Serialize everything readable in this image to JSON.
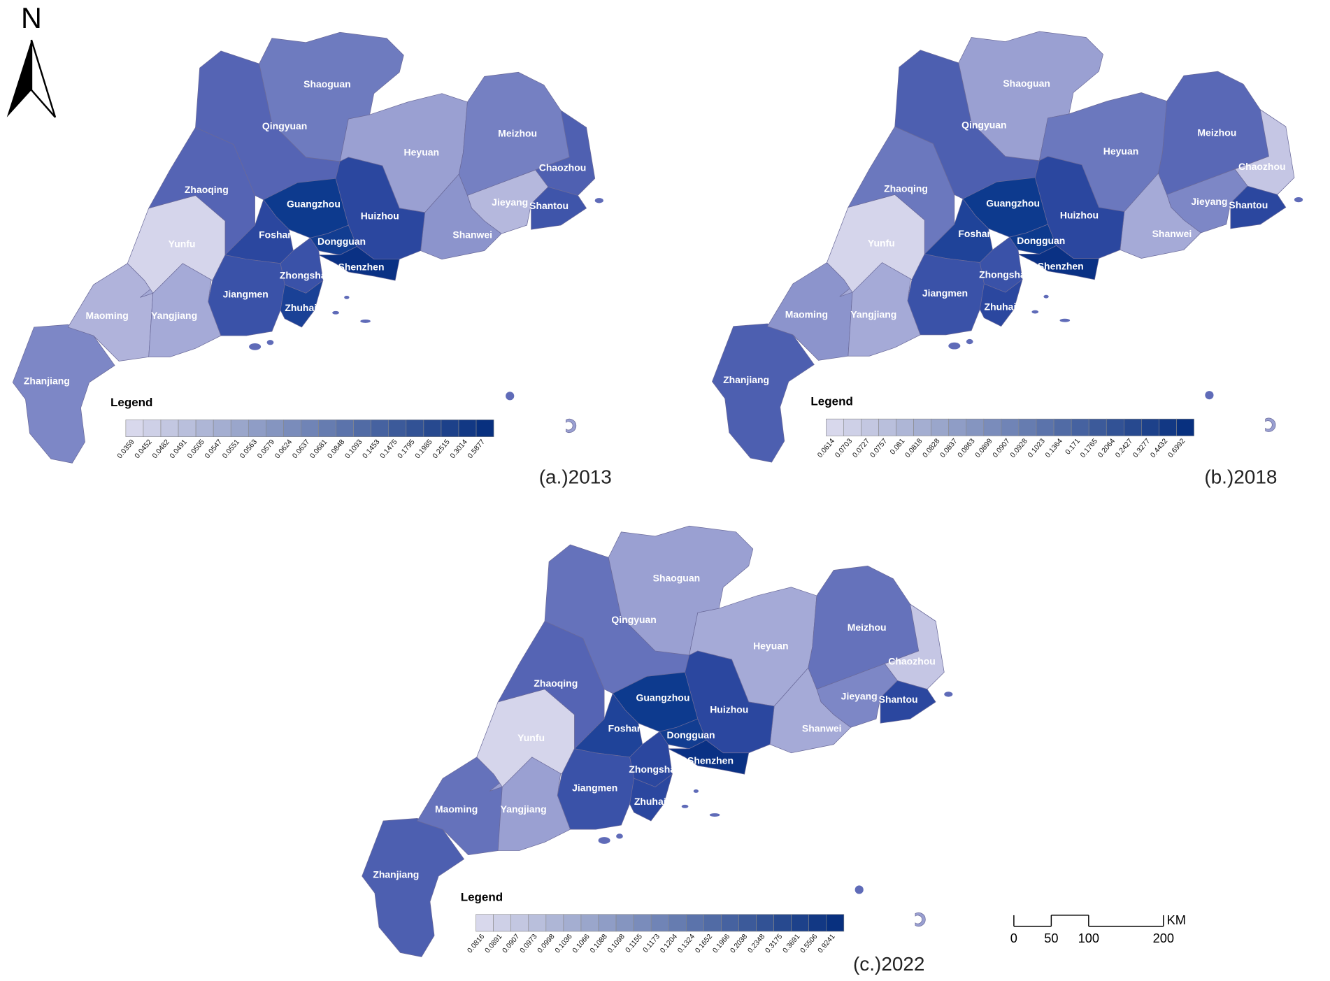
{
  "north": "N",
  "scale_bar": {
    "ticks": [
      0,
      50,
      100,
      200
    ],
    "unit": "KM"
  },
  "maps": [
    {
      "caption": "(a.)2013",
      "legend": {
        "title": "Legend",
        "color_range": [
          "#d8d8ec",
          "#08307f"
        ],
        "breaks": [
          0.0359,
          0.0452,
          0.0482,
          0.0491,
          0.0505,
          0.0547,
          0.0551,
          0.0563,
          0.0579,
          0.0624,
          0.0637,
          0.0681,
          0.0848,
          0.1093,
          0.1453,
          0.1475,
          0.1795,
          0.1985,
          0.2515,
          0.3014,
          0.5877
        ]
      },
      "cities": [
        {
          "name": "Zhanjiang",
          "color": "#7d87c6"
        },
        {
          "name": "Maoming",
          "color": "#b0b3db"
        },
        {
          "name": "Yangjiang",
          "color": "#a5aad7"
        },
        {
          "name": "Yunfu",
          "color": "#d5d5eb"
        },
        {
          "name": "Zhaoqing",
          "color": "#5564b4"
        },
        {
          "name": "Qingyuan",
          "color": "#5564b4"
        },
        {
          "name": "Shaoguan",
          "color": "#6e7bbf"
        },
        {
          "name": "Heyuan",
          "color": "#9aa0d2"
        },
        {
          "name": "Meizhou",
          "color": "#7580c2"
        },
        {
          "name": "Chaozhou",
          "color": "#4f60b1"
        },
        {
          "name": "Jieyang",
          "color": "#b5b8dd"
        },
        {
          "name": "Shantou",
          "color": "#3f55aa"
        },
        {
          "name": "Shanwei",
          "color": "#8c94cc"
        },
        {
          "name": "Huizhou",
          "color": "#2b479f"
        },
        {
          "name": "Guangzhou",
          "color": "#0d3a8e"
        },
        {
          "name": "Foshan",
          "color": "#2b479f"
        },
        {
          "name": "Dongguan",
          "color": "#123d91"
        },
        {
          "name": "Shenzhen",
          "color": "#0a3184"
        },
        {
          "name": "Zhongshan",
          "color": "#3a52a8"
        },
        {
          "name": "Jiangmen",
          "color": "#3a52a8"
        },
        {
          "name": "Zhuhai",
          "color": "#1a4196"
        }
      ]
    },
    {
      "caption": "(b.)2018",
      "legend": {
        "title": "Legend",
        "color_range": [
          "#d8d8ec",
          "#08307f"
        ],
        "breaks": [
          0.0614,
          0.0703,
          0.0727,
          0.0757,
          0.081,
          0.0818,
          0.0828,
          0.0837,
          0.0863,
          0.0899,
          0.0907,
          0.0928,
          0.1023,
          0.1364,
          0.171,
          0.1765,
          0.2064,
          0.2427,
          0.3277,
          0.4432,
          0.6992
        ]
      },
      "cities": [
        {
          "name": "Zhanjiang",
          "color": "#4d5fb0"
        },
        {
          "name": "Maoming",
          "color": "#8c94cc"
        },
        {
          "name": "Yangjiang",
          "color": "#a5aad7"
        },
        {
          "name": "Yunfu",
          "color": "#d5d5eb"
        },
        {
          "name": "Zhaoqing",
          "color": "#6b78be"
        },
        {
          "name": "Qingyuan",
          "color": "#4d5fb0"
        },
        {
          "name": "Shaoguan",
          "color": "#9aa0d2"
        },
        {
          "name": "Heyuan",
          "color": "#6b78be"
        },
        {
          "name": "Meizhou",
          "color": "#5968b6"
        },
        {
          "name": "Chaozhou",
          "color": "#c5c6e4"
        },
        {
          "name": "Jieyang",
          "color": "#7d87c6"
        },
        {
          "name": "Shantou",
          "color": "#2b479f"
        },
        {
          "name": "Shanwei",
          "color": "#a5aad7"
        },
        {
          "name": "Huizhou",
          "color": "#2b479f"
        },
        {
          "name": "Guangzhou",
          "color": "#0d3a8e"
        },
        {
          "name": "Foshan",
          "color": "#1f4399"
        },
        {
          "name": "Dongguan",
          "color": "#0d3a8e"
        },
        {
          "name": "Shenzhen",
          "color": "#0a3184"
        },
        {
          "name": "Zhongshan",
          "color": "#3a52a8"
        },
        {
          "name": "Jiangmen",
          "color": "#3a52a8"
        },
        {
          "name": "Zhuhai",
          "color": "#2b479f"
        }
      ]
    },
    {
      "caption": "(c.)2022",
      "legend": {
        "title": "Legend",
        "color_range": [
          "#d8d8ec",
          "#08307f"
        ],
        "breaks": [
          0.0816,
          0.0891,
          0.0907,
          0.0973,
          0.0998,
          0.1036,
          0.1066,
          0.1088,
          0.1098,
          0.1155,
          0.1173,
          0.1204,
          0.1324,
          0.1652,
          0.1966,
          0.2038,
          0.2348,
          0.3175,
          0.3691,
          0.5506,
          0.9241
        ]
      },
      "cities": [
        {
          "name": "Zhanjiang",
          "color": "#4d5fb0"
        },
        {
          "name": "Maoming",
          "color": "#6572bb"
        },
        {
          "name": "Yangjiang",
          "color": "#9aa0d2"
        },
        {
          "name": "Yunfu",
          "color": "#d5d5eb"
        },
        {
          "name": "Zhaoqing",
          "color": "#5564b4"
        },
        {
          "name": "Qingyuan",
          "color": "#6572bb"
        },
        {
          "name": "Shaoguan",
          "color": "#9aa0d2"
        },
        {
          "name": "Heyuan",
          "color": "#a5aad7"
        },
        {
          "name": "Meizhou",
          "color": "#6572bb"
        },
        {
          "name": "Chaozhou",
          "color": "#c5c6e4"
        },
        {
          "name": "Jieyang",
          "color": "#7d87c6"
        },
        {
          "name": "Shantou",
          "color": "#2b479f"
        },
        {
          "name": "Shanwei",
          "color": "#a5aad7"
        },
        {
          "name": "Huizhou",
          "color": "#2b479f"
        },
        {
          "name": "Guangzhou",
          "color": "#0d3a8e"
        },
        {
          "name": "Foshan",
          "color": "#1f4399"
        },
        {
          "name": "Dongguan",
          "color": "#123d91"
        },
        {
          "name": "Shenzhen",
          "color": "#0a3184"
        },
        {
          "name": "Zhongshan",
          "color": "#2b479f"
        },
        {
          "name": "Jiangmen",
          "color": "#3a52a8"
        },
        {
          "name": "Zhuhai",
          "color": "#2b479f"
        }
      ]
    }
  ]
}
